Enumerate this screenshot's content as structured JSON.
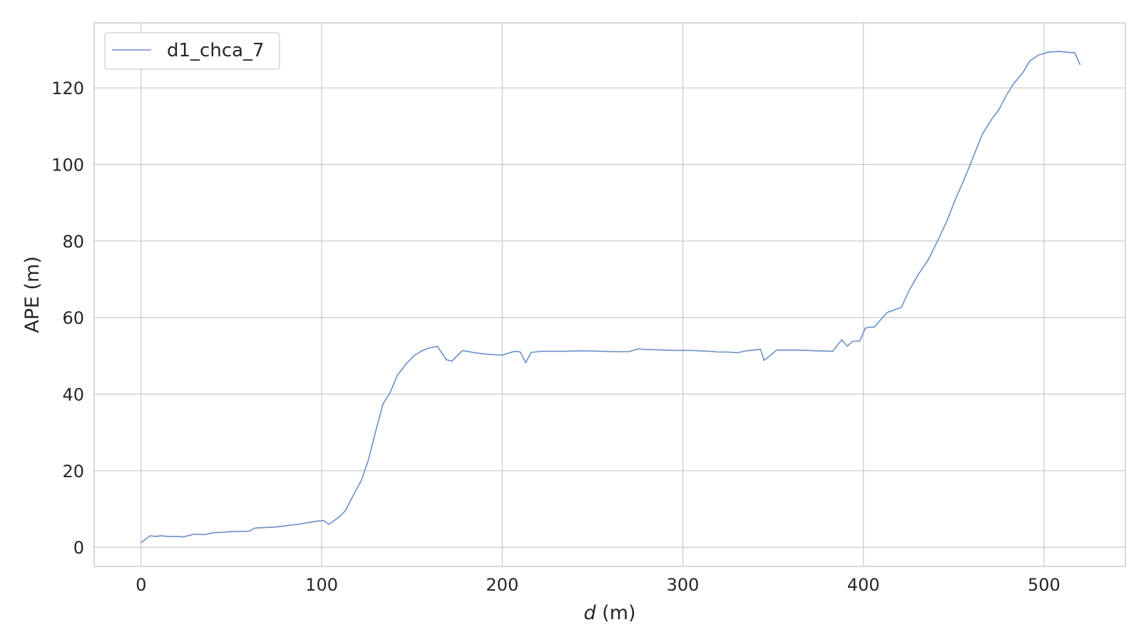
{
  "chart_data": {
    "type": "line",
    "title": "",
    "xlabel_italic": "d",
    "xlabel_unit": " (m)",
    "ylabel": "APE (m)",
    "xlim": [
      -26,
      545
    ],
    "ylim": [
      -5,
      137
    ],
    "xticks": [
      0,
      100,
      200,
      300,
      400,
      500
    ],
    "yticks": [
      0,
      20,
      40,
      60,
      80,
      100,
      120
    ],
    "grid": true,
    "legend_position": "top-left",
    "colors": {
      "series": "#6b8fc9",
      "grid": "#cccccc",
      "frame": "#cccccc",
      "text": "#262626"
    },
    "series": [
      {
        "name": "d1_chca_7",
        "x": [
          0,
          5,
          8,
          11,
          15,
          20,
          23,
          26,
          29,
          35,
          40,
          45,
          50,
          55,
          60,
          63,
          70,
          75,
          80,
          87,
          92,
          97,
          101,
          104,
          110,
          113,
          118,
          122,
          126,
          130,
          134,
          138,
          142,
          147,
          151,
          155,
          159,
          164,
          169,
          172,
          178,
          185,
          190,
          195,
          200,
          207,
          210,
          213,
          216,
          222,
          228,
          235,
          240,
          247,
          255,
          262,
          270,
          275,
          278,
          285,
          290,
          295,
          300,
          305,
          310,
          315,
          320,
          325,
          330,
          335,
          339,
          343,
          345,
          352,
          358,
          364,
          369,
          376,
          383,
          388,
          391,
          394,
          398,
          401,
          403,
          406,
          413,
          421,
          425,
          430,
          436,
          441,
          446,
          451,
          455,
          460,
          466,
          471,
          475,
          479,
          483,
          488,
          492,
          497,
          503,
          509,
          513,
          517,
          520
        ],
        "y": [
          1.2,
          3.0,
          2.8,
          3.0,
          2.8,
          2.8,
          2.7,
          3.0,
          3.4,
          3.3,
          3.8,
          3.9,
          4.1,
          4.1,
          4.2,
          5.0,
          5.2,
          5.3,
          5.6,
          6.0,
          6.4,
          6.8,
          7.0,
          6.0,
          8.0,
          9.5,
          14.0,
          17.5,
          23.0,
          30.5,
          37.5,
          40.5,
          45.0,
          48.0,
          50.0,
          51.2,
          52.0,
          52.5,
          49.0,
          48.6,
          51.4,
          50.8,
          50.5,
          50.3,
          50.2,
          51.2,
          51.0,
          48.2,
          50.9,
          51.2,
          51.2,
          51.2,
          51.3,
          51.3,
          51.2,
          51.1,
          51.1,
          51.8,
          51.7,
          51.6,
          51.5,
          51.4,
          51.4,
          51.4,
          51.3,
          51.2,
          51.0,
          51.0,
          50.8,
          51.3,
          51.5,
          51.7,
          48.8,
          51.5,
          51.5,
          51.5,
          51.4,
          51.3,
          51.2,
          54.2,
          52.5,
          53.8,
          53.9,
          57.2,
          57.5,
          57.5,
          61.3,
          62.7,
          66.8,
          71.0,
          75.2,
          80.0,
          85.0,
          91.0,
          95.3,
          101.0,
          108.0,
          111.8,
          114.3,
          118.0,
          121.0,
          123.8,
          127.0,
          128.6,
          129.4,
          129.5,
          129.3,
          129.2,
          126.0
        ]
      }
    ]
  }
}
